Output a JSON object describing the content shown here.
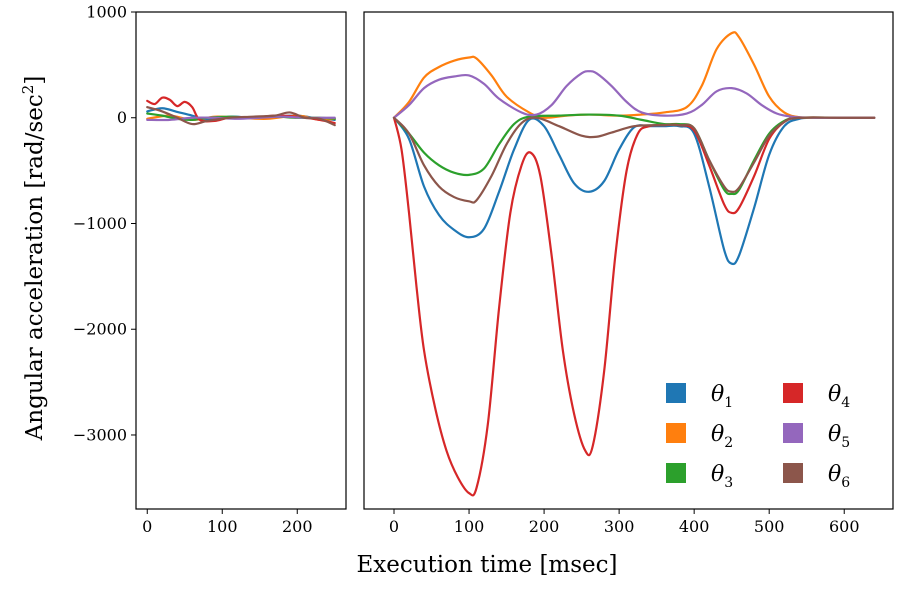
{
  "chart_data": {
    "type": "line",
    "xlabel": "Execution time [msec]",
    "ylabel_main": "Angular acceleration [rad/sec",
    "ylabel_sup": "2",
    "ylabel_close": "]",
    "ylim": [
      -3700,
      1000
    ],
    "grid": false,
    "legend_position": "lower-right",
    "panels": [
      {
        "name": "left",
        "xlim": [
          -15,
          265
        ],
        "xticks": [
          0,
          100,
          200
        ],
        "yticks": [
          1000,
          0,
          -1000,
          -2000,
          -3000
        ]
      },
      {
        "name": "right",
        "xlim": [
          -40,
          665
        ],
        "xticks": [
          0,
          100,
          200,
          300,
          400,
          500,
          600
        ]
      }
    ],
    "series": [
      {
        "name": "θ1",
        "symbol": "θ",
        "sub": "1",
        "color": "#1f77b4",
        "left": [
          [
            0,
            60
          ],
          [
            20,
            90
          ],
          [
            40,
            55
          ],
          [
            60,
            20
          ],
          [
            80,
            -20
          ],
          [
            110,
            10
          ],
          [
            140,
            0
          ],
          [
            170,
            10
          ],
          [
            200,
            20
          ],
          [
            230,
            -10
          ],
          [
            250,
            -20
          ]
        ],
        "right": [
          [
            0,
            0
          ],
          [
            20,
            -200
          ],
          [
            40,
            -650
          ],
          [
            60,
            -920
          ],
          [
            80,
            -1060
          ],
          [
            100,
            -1130
          ],
          [
            120,
            -1050
          ],
          [
            140,
            -700
          ],
          [
            160,
            -300
          ],
          [
            180,
            -20
          ],
          [
            200,
            -80
          ],
          [
            220,
            -350
          ],
          [
            240,
            -620
          ],
          [
            260,
            -700
          ],
          [
            280,
            -600
          ],
          [
            300,
            -300
          ],
          [
            320,
            -90
          ],
          [
            340,
            -80
          ],
          [
            360,
            -80
          ],
          [
            380,
            -80
          ],
          [
            400,
            -150
          ],
          [
            420,
            -650
          ],
          [
            440,
            -1250
          ],
          [
            450,
            -1380
          ],
          [
            460,
            -1300
          ],
          [
            480,
            -850
          ],
          [
            500,
            -350
          ],
          [
            520,
            -80
          ],
          [
            540,
            -10
          ],
          [
            560,
            0
          ],
          [
            600,
            0
          ],
          [
            640,
            0
          ]
        ]
      },
      {
        "name": "θ2",
        "symbol": "θ",
        "sub": "2",
        "color": "#ff7f0e",
        "left": [
          [
            0,
            -10
          ],
          [
            30,
            20
          ],
          [
            60,
            -20
          ],
          [
            90,
            10
          ],
          [
            120,
            0
          ],
          [
            160,
            -10
          ],
          [
            200,
            20
          ],
          [
            230,
            -20
          ],
          [
            250,
            -10
          ]
        ],
        "right": [
          [
            0,
            0
          ],
          [
            20,
            150
          ],
          [
            40,
            380
          ],
          [
            60,
            480
          ],
          [
            80,
            540
          ],
          [
            100,
            570
          ],
          [
            110,
            560
          ],
          [
            130,
            400
          ],
          [
            150,
            200
          ],
          [
            180,
            50
          ],
          [
            200,
            0
          ],
          [
            230,
            20
          ],
          [
            260,
            30
          ],
          [
            300,
            20
          ],
          [
            330,
            30
          ],
          [
            360,
            50
          ],
          [
            390,
            100
          ],
          [
            410,
            300
          ],
          [
            430,
            650
          ],
          [
            450,
            800
          ],
          [
            460,
            760
          ],
          [
            480,
            500
          ],
          [
            500,
            200
          ],
          [
            520,
            50
          ],
          [
            540,
            5
          ],
          [
            560,
            0
          ],
          [
            600,
            0
          ],
          [
            640,
            0
          ]
        ]
      },
      {
        "name": "θ3",
        "symbol": "θ",
        "sub": "3",
        "color": "#2ca02c",
        "left": [
          [
            0,
            40
          ],
          [
            20,
            20
          ],
          [
            40,
            -10
          ],
          [
            60,
            -20
          ],
          [
            80,
            0
          ],
          [
            110,
            10
          ],
          [
            140,
            0
          ],
          [
            170,
            10
          ],
          [
            200,
            0
          ],
          [
            230,
            0
          ],
          [
            250,
            -10
          ]
        ],
        "right": [
          [
            0,
            0
          ],
          [
            20,
            -150
          ],
          [
            40,
            -330
          ],
          [
            60,
            -450
          ],
          [
            80,
            -520
          ],
          [
            100,
            -540
          ],
          [
            120,
            -480
          ],
          [
            140,
            -250
          ],
          [
            160,
            -60
          ],
          [
            180,
            10
          ],
          [
            220,
            20
          ],
          [
            260,
            30
          ],
          [
            300,
            20
          ],
          [
            330,
            -20
          ],
          [
            360,
            -60
          ],
          [
            380,
            -60
          ],
          [
            400,
            -100
          ],
          [
            420,
            -400
          ],
          [
            440,
            -680
          ],
          [
            450,
            -720
          ],
          [
            460,
            -680
          ],
          [
            480,
            -400
          ],
          [
            500,
            -150
          ],
          [
            520,
            -30
          ],
          [
            540,
            0
          ],
          [
            600,
            0
          ],
          [
            640,
            0
          ]
        ]
      },
      {
        "name": "θ4",
        "symbol": "θ",
        "sub": "4",
        "color": "#d62728",
        "left": [
          [
            0,
            160
          ],
          [
            10,
            130
          ],
          [
            20,
            190
          ],
          [
            30,
            170
          ],
          [
            40,
            110
          ],
          [
            50,
            150
          ],
          [
            60,
            100
          ],
          [
            70,
            -20
          ],
          [
            90,
            -30
          ],
          [
            110,
            0
          ],
          [
            140,
            0
          ],
          [
            170,
            20
          ],
          [
            200,
            10
          ],
          [
            230,
            -20
          ],
          [
            250,
            -50
          ]
        ],
        "right": [
          [
            0,
            0
          ],
          [
            10,
            -300
          ],
          [
            20,
            -900
          ],
          [
            30,
            -1600
          ],
          [
            40,
            -2200
          ],
          [
            55,
            -2750
          ],
          [
            70,
            -3150
          ],
          [
            85,
            -3400
          ],
          [
            100,
            -3550
          ],
          [
            110,
            -3500
          ],
          [
            125,
            -2900
          ],
          [
            140,
            -1800
          ],
          [
            155,
            -900
          ],
          [
            170,
            -450
          ],
          [
            182,
            -330
          ],
          [
            195,
            -550
          ],
          [
            210,
            -1300
          ],
          [
            225,
            -2200
          ],
          [
            240,
            -2800
          ],
          [
            255,
            -3150
          ],
          [
            265,
            -3100
          ],
          [
            280,
            -2400
          ],
          [
            295,
            -1300
          ],
          [
            310,
            -500
          ],
          [
            325,
            -150
          ],
          [
            340,
            -80
          ],
          [
            360,
            -70
          ],
          [
            380,
            -70
          ],
          [
            400,
            -120
          ],
          [
            420,
            -450
          ],
          [
            440,
            -820
          ],
          [
            450,
            -900
          ],
          [
            460,
            -850
          ],
          [
            480,
            -550
          ],
          [
            500,
            -200
          ],
          [
            520,
            -40
          ],
          [
            540,
            0
          ],
          [
            600,
            0
          ],
          [
            640,
            0
          ]
        ]
      },
      {
        "name": "θ5",
        "symbol": "θ",
        "sub": "5",
        "color": "#9467bd",
        "left": [
          [
            0,
            -20
          ],
          [
            30,
            -20
          ],
          [
            60,
            0
          ],
          [
            90,
            0
          ],
          [
            120,
            -10
          ],
          [
            150,
            0
          ],
          [
            180,
            10
          ],
          [
            210,
            0
          ],
          [
            250,
            0
          ]
        ],
        "right": [
          [
            0,
            0
          ],
          [
            20,
            120
          ],
          [
            40,
            280
          ],
          [
            60,
            360
          ],
          [
            80,
            390
          ],
          [
            100,
            400
          ],
          [
            120,
            320
          ],
          [
            140,
            180
          ],
          [
            170,
            50
          ],
          [
            190,
            30
          ],
          [
            210,
            120
          ],
          [
            230,
            300
          ],
          [
            250,
            420
          ],
          [
            260,
            440
          ],
          [
            270,
            420
          ],
          [
            290,
            300
          ],
          [
            310,
            150
          ],
          [
            330,
            50
          ],
          [
            360,
            20
          ],
          [
            390,
            40
          ],
          [
            410,
            120
          ],
          [
            430,
            250
          ],
          [
            450,
            280
          ],
          [
            470,
            230
          ],
          [
            490,
            120
          ],
          [
            510,
            40
          ],
          [
            530,
            10
          ],
          [
            560,
            0
          ],
          [
            600,
            0
          ],
          [
            640,
            0
          ]
        ]
      },
      {
        "name": "θ6",
        "symbol": "θ",
        "sub": "6",
        "color": "#8c564b",
        "left": [
          [
            0,
            100
          ],
          [
            20,
            60
          ],
          [
            40,
            0
          ],
          [
            60,
            -60
          ],
          [
            80,
            -30
          ],
          [
            110,
            0
          ],
          [
            140,
            10
          ],
          [
            170,
            20
          ],
          [
            190,
            50
          ],
          [
            210,
            0
          ],
          [
            230,
            -10
          ],
          [
            250,
            -70
          ]
        ],
        "right": [
          [
            0,
            0
          ],
          [
            20,
            -150
          ],
          [
            40,
            -450
          ],
          [
            60,
            -650
          ],
          [
            80,
            -750
          ],
          [
            100,
            -790
          ],
          [
            110,
            -780
          ],
          [
            130,
            -550
          ],
          [
            150,
            -250
          ],
          [
            170,
            -50
          ],
          [
            190,
            0
          ],
          [
            220,
            -80
          ],
          [
            250,
            -170
          ],
          [
            270,
            -180
          ],
          [
            290,
            -140
          ],
          [
            320,
            -80
          ],
          [
            350,
            -70
          ],
          [
            380,
            -70
          ],
          [
            400,
            -100
          ],
          [
            420,
            -400
          ],
          [
            440,
            -650
          ],
          [
            450,
            -700
          ],
          [
            460,
            -660
          ],
          [
            480,
            -420
          ],
          [
            500,
            -170
          ],
          [
            520,
            -40
          ],
          [
            540,
            0
          ],
          [
            600,
            0
          ],
          [
            640,
            0
          ]
        ]
      }
    ]
  }
}
